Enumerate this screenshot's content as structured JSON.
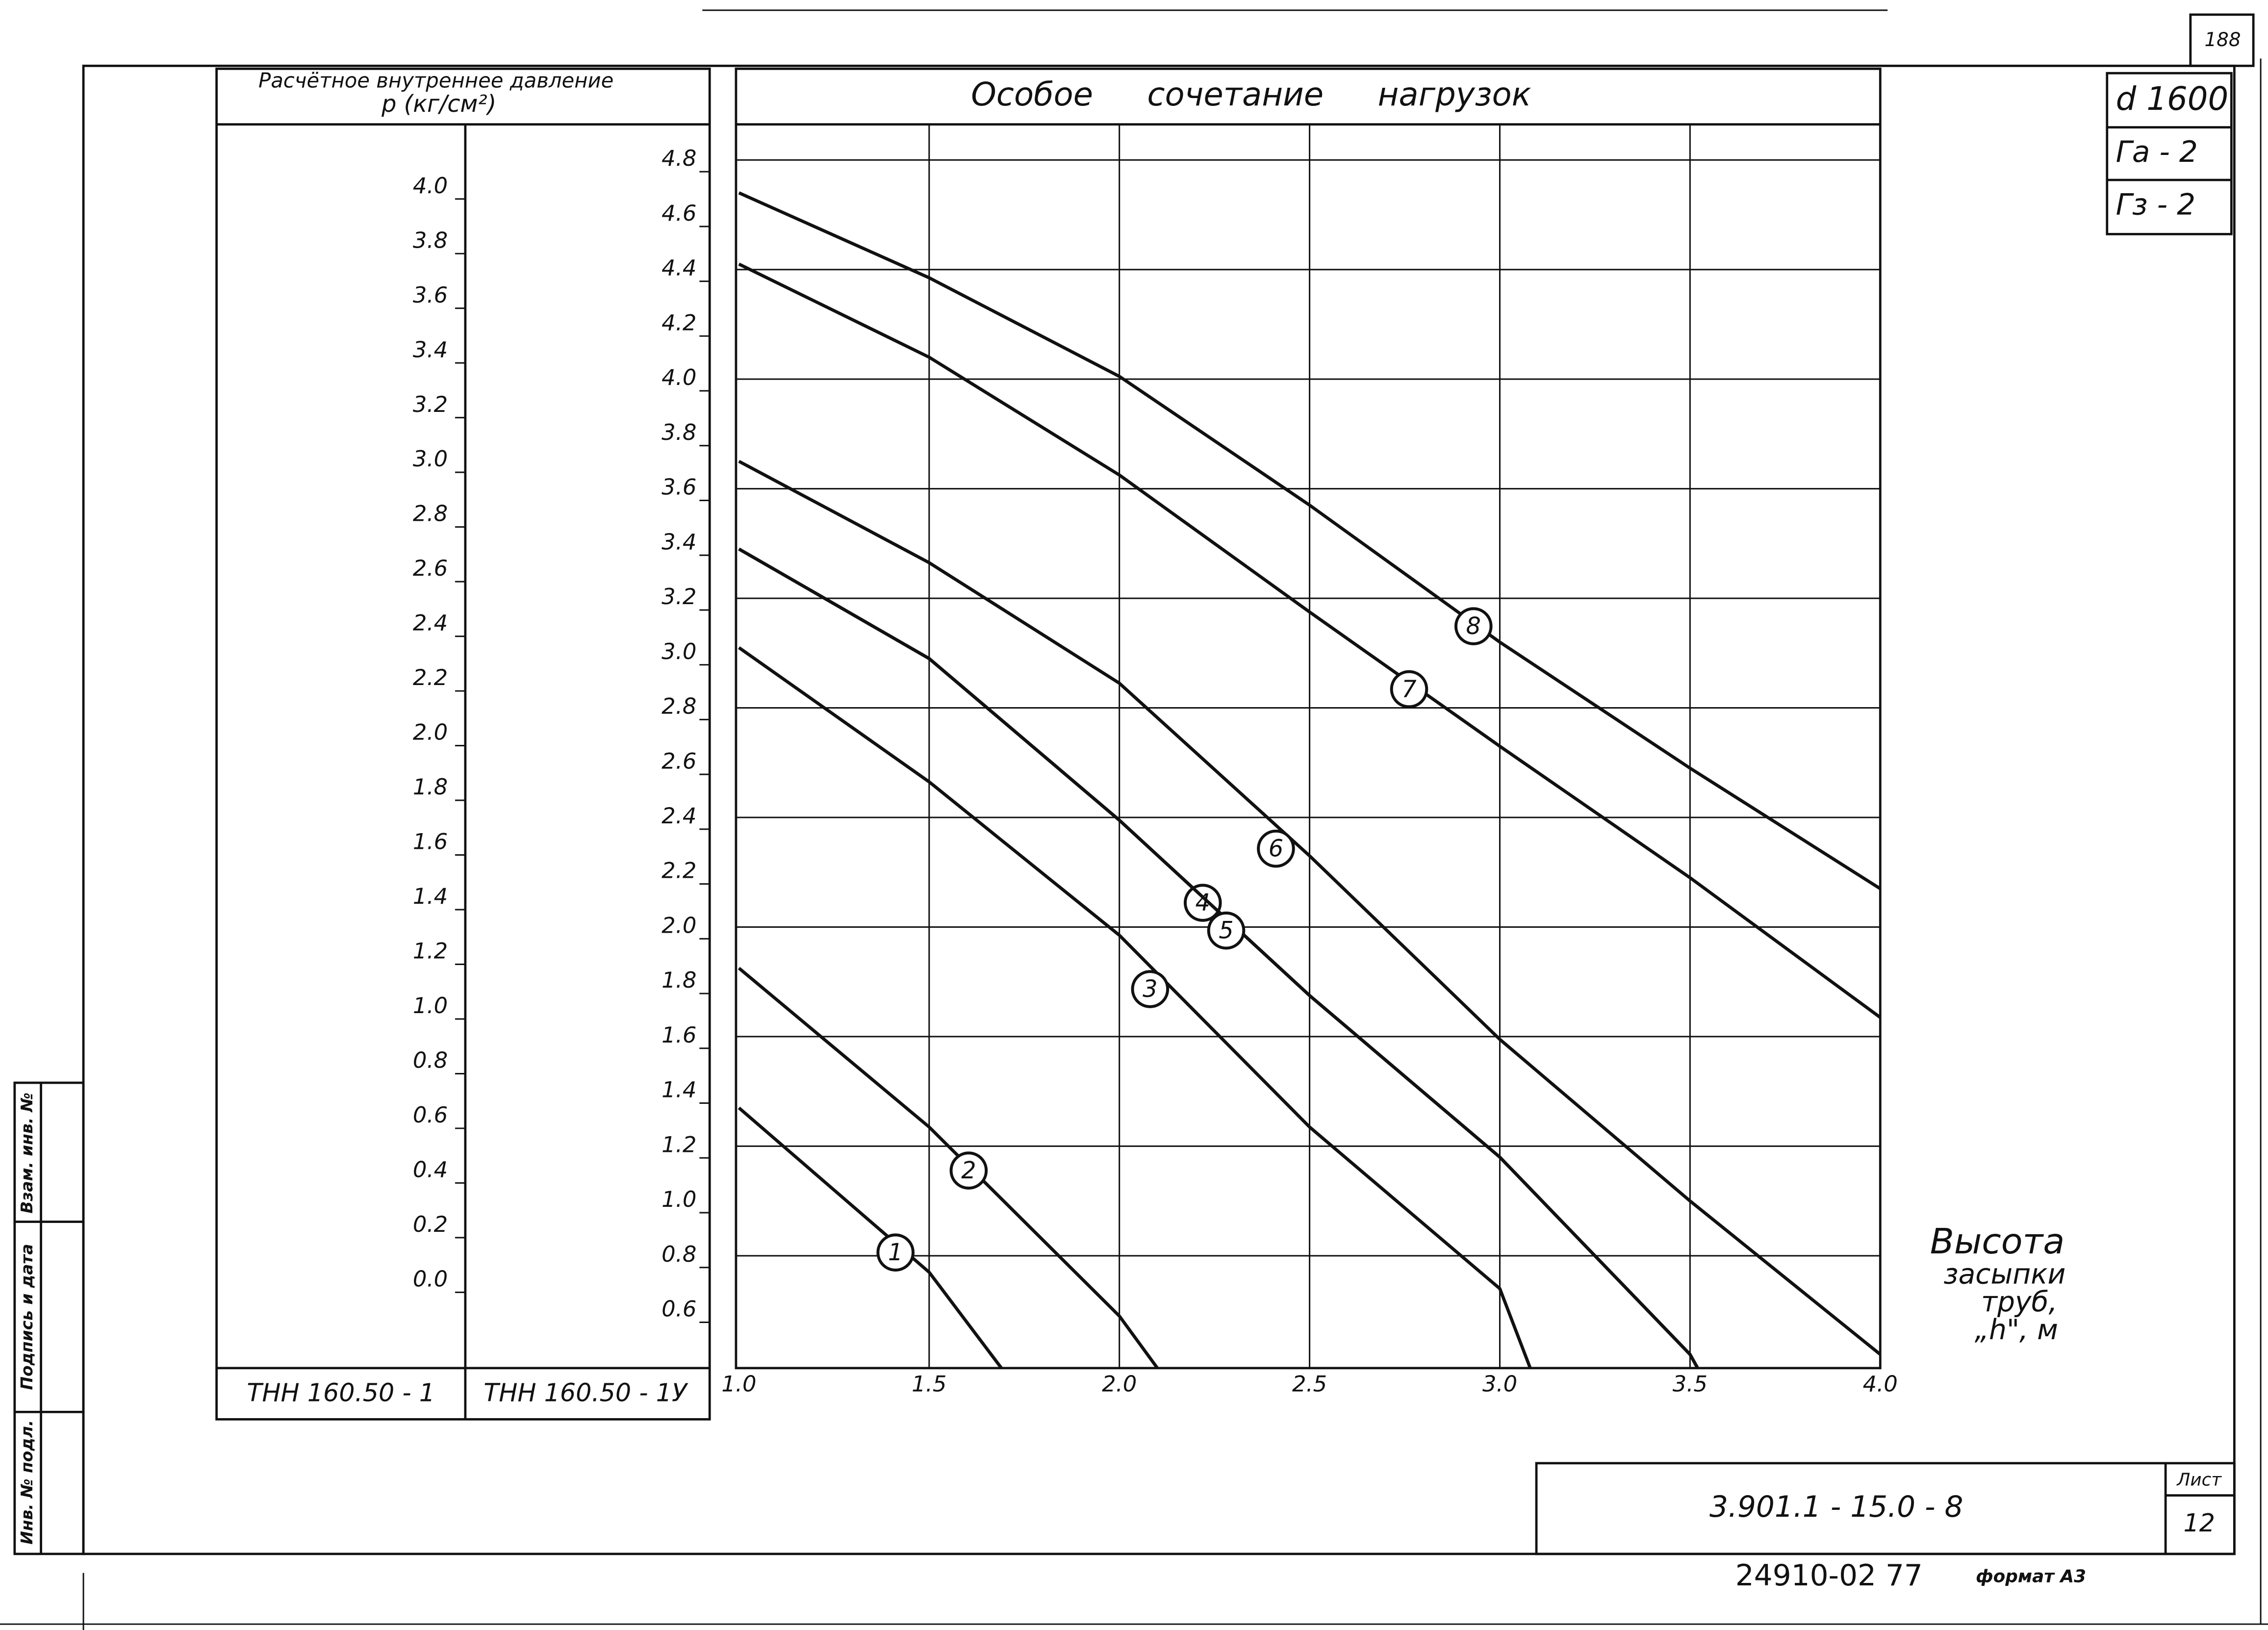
{
  "chart_data": {
    "type": "line",
    "title": "Особое сочетание нагрузок",
    "ylabel": [
      "Расчётное внутреннее давление",
      "p (кг/см²)"
    ],
    "xlabel": [
      "Высота",
      "засыпки",
      "труб,",
      "„h\", м"
    ],
    "y2label": "ТНН 160.50 - 1",
    "y1label": "ТНН 160.50 - 1У",
    "xlim": [
      1,
      4
    ],
    "xticks": [
      {
        "value": 1,
        "label": "1.0"
      },
      1.5,
      {
        "value": 2,
        "label": "2.0"
      },
      2.5,
      {
        "value": 3,
        "label": "3.0"
      },
      3.5,
      {
        "value": 4,
        "label": "4.0"
      }
    ],
    "ylim": [
      0.39,
      4.93
    ],
    "yticks": [
      0.6,
      0.8,
      {
        "value": 1,
        "label": "1.0"
      },
      1.2,
      1.4,
      1.6,
      1.8,
      {
        "value": 2,
        "label": "2.0"
      },
      2.2,
      2.4,
      2.6,
      2.8,
      {
        "value": 3,
        "label": "3.0"
      },
      3.2,
      3.4,
      3.6,
      3.8,
      {
        "value": 4,
        "label": "4.0"
      },
      4.2,
      4.4,
      4.6,
      4.8
    ],
    "y2lim": [
      -0.32,
      4.23
    ],
    "y2ticks": [
      {
        "value": 0,
        "label": "0.0"
      },
      0.2,
      0.4,
      0.6,
      0.8,
      {
        "value": 1,
        "label": "1.0"
      },
      1.2,
      1.4,
      1.6,
      1.8,
      {
        "value": 2,
        "label": "2.0"
      },
      2.2,
      2.4,
      2.6,
      2.8,
      {
        "value": 3,
        "label": "3.0"
      },
      3.2,
      3.4,
      3.6,
      3.8,
      {
        "value": 4,
        "label": "4.0"
      }
    ],
    "grid": true,
    "series": [
      {
        "name": "1",
        "color": "#111111",
        "x": [
          1,
          1.5,
          1.69
        ],
        "values": [
          1.34,
          0.74,
          0.39
        ]
      },
      {
        "name": "2",
        "color": "#111111",
        "x": [
          1,
          1.5,
          2,
          2.1
        ],
        "values": [
          1.85,
          1.27,
          0.58,
          0.39
        ]
      },
      {
        "name": "3",
        "color": "#111111",
        "x": [
          1,
          1.5,
          2,
          2.5,
          3,
          3.08
        ],
        "values": [
          3.02,
          2.53,
          1.97,
          1.27,
          0.68,
          0.39
        ]
      },
      {
        "name": "4",
        "color": "#111111",
        "x": [
          1,
          1.5,
          2,
          2.5,
          3,
          3.5,
          3.52
        ],
        "values": [
          3.38,
          2.98,
          2.39,
          1.75,
          1.16,
          0.44,
          0.39
        ]
      },
      {
        "name": "5",
        "color": "#111111",
        "x": [
          1,
          1.5,
          2,
          2.5,
          3,
          3.5,
          3.52
        ],
        "values": [
          3.38,
          2.98,
          2.39,
          1.75,
          1.16,
          0.44,
          0.39
        ]
      },
      {
        "name": "6",
        "color": "#111111",
        "x": [
          1,
          1.5,
          2,
          2.5,
          3,
          3.5,
          4
        ],
        "values": [
          3.7,
          3.33,
          2.89,
          2.26,
          1.59,
          1.0,
          0.44
        ]
      },
      {
        "name": "7",
        "color": "#111111",
        "x": [
          1,
          1.5,
          2,
          2.5,
          3,
          3.5,
          4
        ],
        "values": [
          4.42,
          4.08,
          3.65,
          3.15,
          2.66,
          2.18,
          1.67
        ]
      },
      {
        "name": "8",
        "color": "#111111",
        "x": [
          1,
          1.5,
          2,
          2.5,
          3,
          3.5,
          4
        ],
        "values": [
          4.68,
          4.37,
          4.01,
          3.54,
          3.04,
          2.58,
          2.14
        ]
      }
    ]
  },
  "frame": {
    "page_number": "188",
    "diameter": "d 1600",
    "ground_a": "Га - 2",
    "ground_z": "Гз - 2",
    "document_code": "3.901.1 - 15.0 - 8",
    "sheet_label": "Лист",
    "sheet_number": "12",
    "order_number": "24910-02  77",
    "format": "формат А3",
    "side_labels": [
      "Инв. № подл.",
      "Подпись и дата",
      "Взам. инв. №"
    ]
  }
}
